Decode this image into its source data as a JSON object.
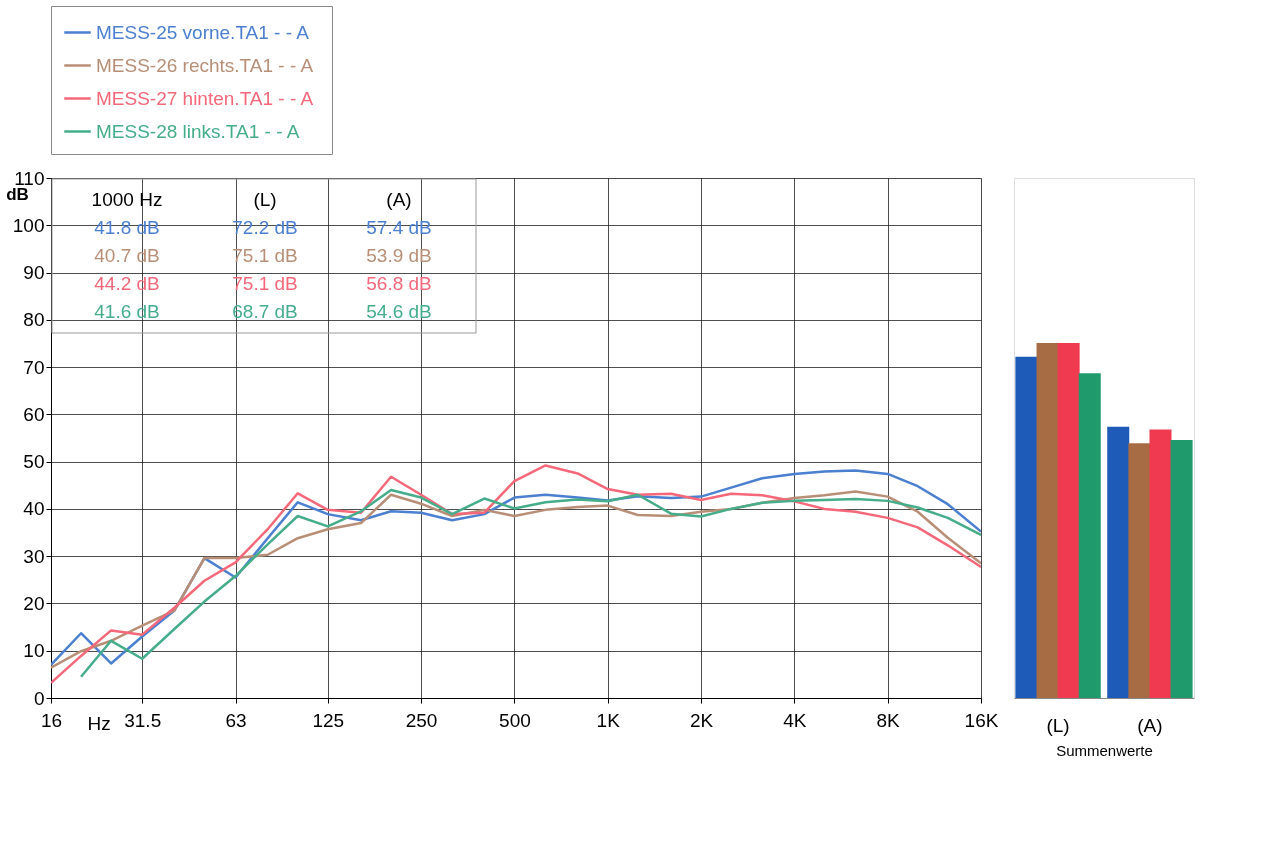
{
  "chart_data": [
    {
      "type": "line",
      "xlabel": "Hz",
      "ylabel": "dB",
      "log": "x",
      "grid": true,
      "legend": "top",
      "x": [
        16,
        20,
        25,
        31.5,
        40,
        50,
        63,
        80,
        100,
        125,
        160,
        200,
        250,
        315,
        400,
        500,
        630,
        800,
        1000,
        1250,
        1600,
        2000,
        2500,
        3150,
        4000,
        5000,
        6300,
        8000,
        10000,
        12500,
        16000
      ],
      "xlim": [
        16,
        16000
      ],
      "xticks": [
        16,
        31.5,
        63,
        125,
        250,
        500,
        {
          "value": 1000,
          "label": "1K"
        },
        {
          "value": 2000,
          "label": "2K"
        },
        {
          "value": 4000,
          "label": "4K"
        },
        {
          "value": 8000,
          "label": "8K"
        },
        {
          "value": 16000,
          "label": "16K"
        }
      ],
      "ylim": [
        0,
        110
      ],
      "yticks": [
        0,
        10,
        20,
        30,
        40,
        50,
        60,
        70,
        80,
        90,
        100,
        110
      ],
      "series": [
        {
          "name": "MESS-25 vorne.TA1 -  - A",
          "color": "#4b7fd0",
          "values": [
            7,
            13.7,
            7.3,
            13,
            18.5,
            29.6,
            25.5,
            33.8,
            41.4,
            38.9,
            37.6,
            39.5,
            39.2,
            37.6,
            38.9,
            42.4,
            43,
            42.4,
            41.8,
            42.7,
            42.3,
            42.6,
            44.5,
            46.5,
            47.4,
            47.9,
            48.1,
            47.4,
            44.8,
            41,
            35.2
          ]
        },
        {
          "name": "MESS-26 rechts.TA1 -  - A",
          "color": "#b88f76",
          "values": [
            6.4,
            9.9,
            12.1,
            15.3,
            18.5,
            29.6,
            29.6,
            30.3,
            33.8,
            35.7,
            37,
            43,
            41.1,
            38.5,
            39.8,
            38.5,
            39.8,
            40.4,
            40.7,
            38.7,
            38.5,
            39.4,
            40,
            41.3,
            42.3,
            42.9,
            43.7,
            42.6,
            39.4,
            33.9,
            28.5
          ]
        },
        {
          "name": "MESS-27 hinten.TA1 -  - A",
          "color": "#f4687a",
          "values": [
            3.2,
            8.9,
            14.3,
            13.4,
            19.1,
            24.8,
            28.7,
            35.7,
            43.3,
            39.8,
            39.2,
            46.8,
            43,
            38.9,
            39.2,
            45.9,
            49.2,
            47.5,
            44.2,
            43,
            43.2,
            41.9,
            43.2,
            42.9,
            41.6,
            40,
            39.4,
            38.1,
            36.1,
            32.3,
            27.7
          ]
        },
        {
          "name": "MESS-28 links.TA1 -  - A",
          "color": "#45ad8a",
          "values": [
            null,
            4.5,
            12.1,
            8.3,
            14.6,
            20.4,
            25.8,
            32.5,
            38.5,
            36.3,
            39.5,
            44,
            42.4,
            38.9,
            42.2,
            40.1,
            41.4,
            42,
            41.6,
            43,
            39,
            38.4,
            40,
            41.3,
            41.7,
            41.9,
            42.1,
            41.7,
            40.3,
            38.1,
            34.5
          ]
        }
      ],
      "annotations": [
        "1000 Hz",
        "(L)",
        "(A)",
        "41.8 dB",
        "72.2 dB",
        "57.4 dB",
        "40.7 dB",
        "75.1 dB",
        "53.9 dB",
        "44.2 dB",
        "75.1 dB",
        "56.8 dB",
        "41.6 dB",
        "68.7 dB",
        "54.6 dB"
      ]
    },
    {
      "type": "bar",
      "categories": [
        "(L)",
        "(A)"
      ],
      "xlabel": "Summenwerte",
      "ylim": [
        0,
        110
      ],
      "tick_labels": "x",
      "series": [
        {
          "color": "#1e5bb8",
          "values": [
            72.2,
            57.4
          ]
        },
        {
          "color": "#a86c45",
          "values": [
            75.1,
            53.9
          ]
        },
        {
          "color": "#f03a50",
          "values": [
            75.1,
            56.8
          ]
        },
        {
          "color": "#1f9a6c",
          "values": [
            68.7,
            54.6
          ]
        }
      ]
    }
  ]
}
